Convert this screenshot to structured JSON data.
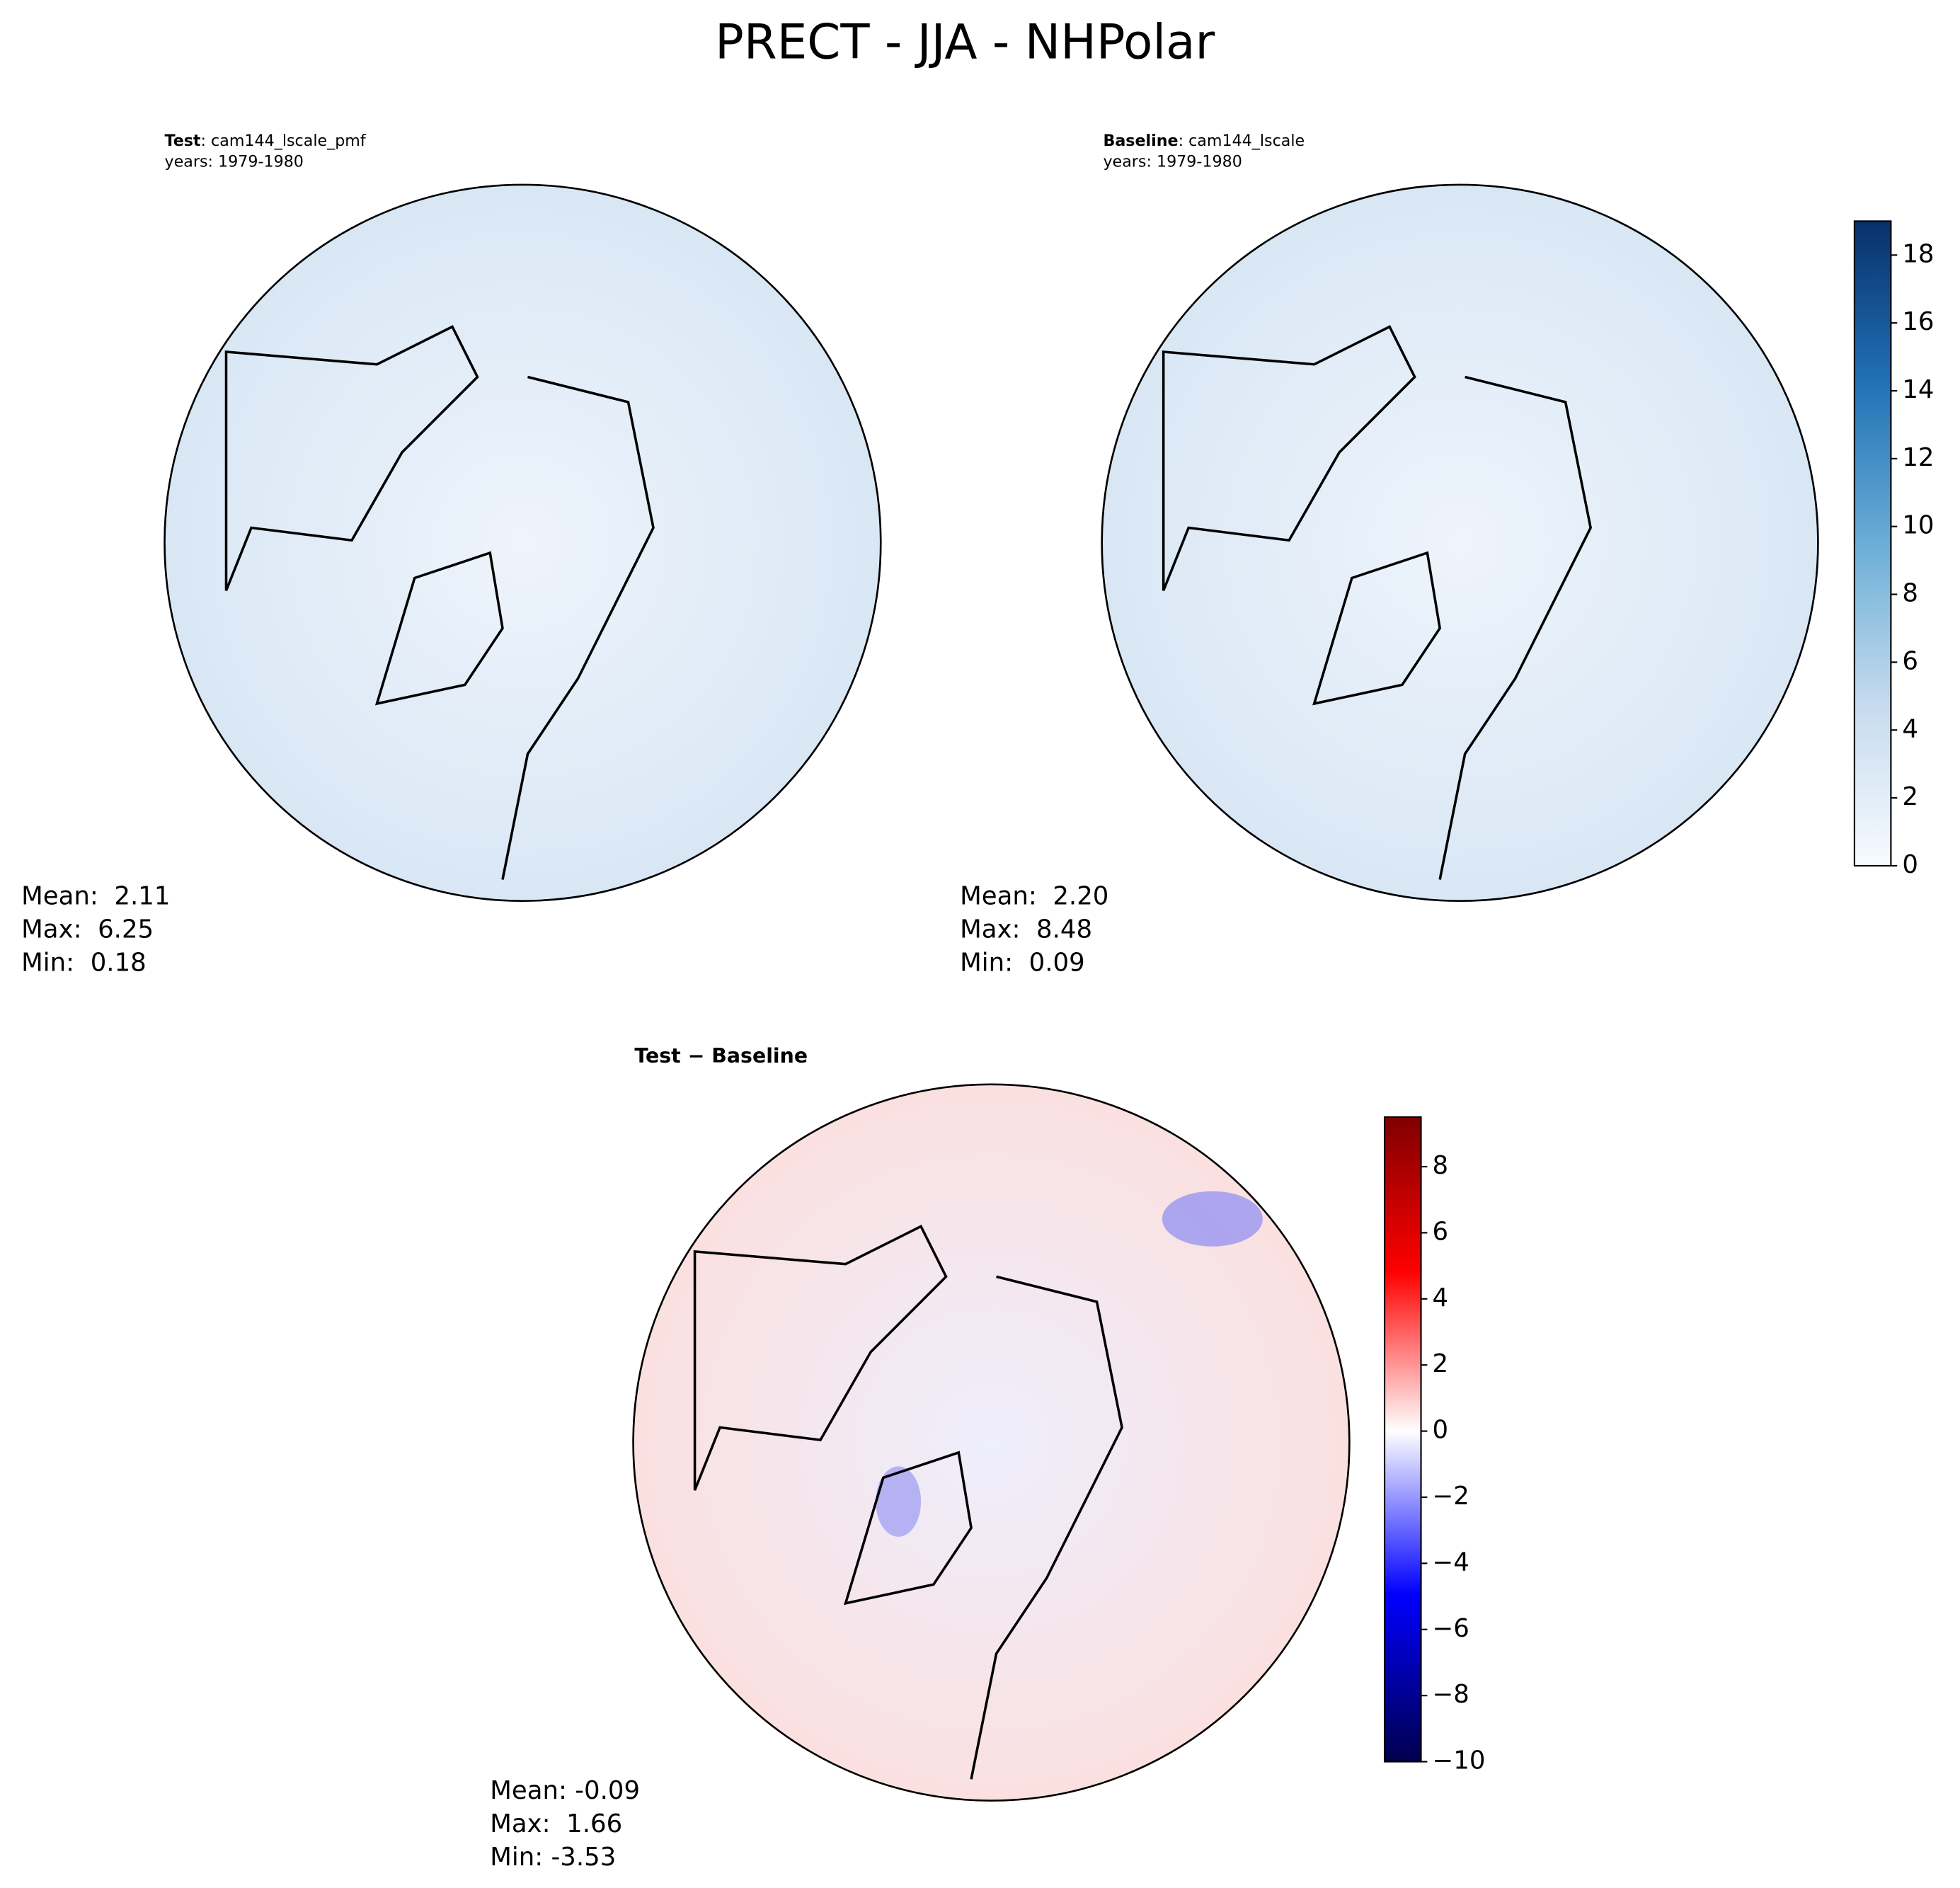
{
  "title": "PRECT - JJA - NHPolar",
  "panels": [
    {
      "name": "Test",
      "case": ": cam144_lscale_pmf",
      "years": "years: 1979-1980",
      "stats": [
        "Mean:  2.11",
        "Max:  6.25",
        "Min:  0.18"
      ]
    },
    {
      "name": "Baseline",
      "case": ": cam144_lscale",
      "years": "years: 1979-1980",
      "stats": [
        "Mean:  2.20",
        "Max:  8.48",
        "Min:  0.09"
      ]
    },
    {
      "name": "Test − Baseline",
      "stats": [
        "Mean: -0.09",
        "Max:  1.66",
        "Min: -3.53"
      ]
    }
  ],
  "colorbars": [
    {
      "lim": [
        0,
        19
      ],
      "ticks": [
        0,
        2,
        4,
        6,
        8,
        10,
        12,
        14,
        16,
        18
      ]
    },
    {
      "lim": [
        -10,
        9.5
      ],
      "ticks": [
        {
          "value": -10,
          "label": "−10"
        },
        {
          "value": -8,
          "label": "−8"
        },
        {
          "value": -6,
          "label": "−6"
        },
        {
          "value": -4,
          "label": "−4"
        },
        {
          "value": -2,
          "label": "−2"
        },
        0,
        2,
        4,
        6,
        8
      ]
    }
  ]
}
